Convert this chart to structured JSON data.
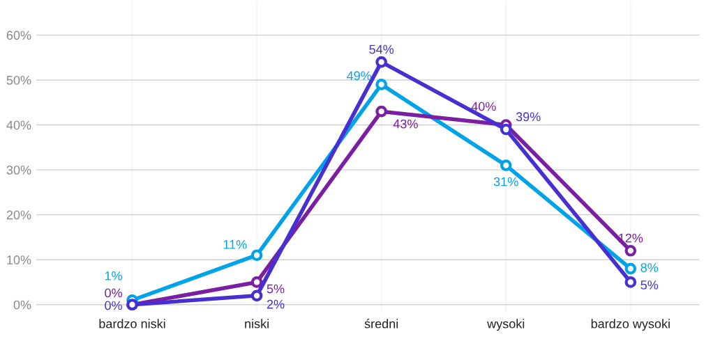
{
  "chart_data": {
    "type": "line",
    "categories": [
      "bardzo niski",
      "niski",
      "średni",
      "wysoki",
      "bardzo wysoki"
    ],
    "series": [
      {
        "color": "#00a3e8",
        "values": [
          1,
          11,
          49,
          31,
          8
        ],
        "value_labels": [
          "1%",
          "11%",
          "49%",
          "31%",
          "8%"
        ]
      },
      {
        "color": "#7b1fa2",
        "values": [
          0,
          5,
          43,
          40,
          12
        ],
        "value_labels": [
          "0%",
          "5%",
          "43%",
          "40%",
          "12%"
        ]
      },
      {
        "color": "#4630d2",
        "values": [
          0,
          2,
          54,
          39,
          5
        ],
        "value_labels": [
          "0%",
          "2%",
          "54%",
          "39%",
          "5%"
        ]
      }
    ],
    "ylim": [
      -1.9,
      67.5
    ],
    "yticks": [
      {
        "value": 0,
        "label": "0%"
      },
      {
        "value": 10,
        "label": "10%"
      },
      {
        "value": 20,
        "label": "20%"
      },
      {
        "value": 30,
        "label": "30%"
      },
      {
        "value": 40,
        "label": "40%"
      },
      {
        "value": 50,
        "label": "50%"
      },
      {
        "value": 60,
        "label": "60%"
      }
    ],
    "grid": true,
    "marker": "circle",
    "line_style": "solid"
  }
}
